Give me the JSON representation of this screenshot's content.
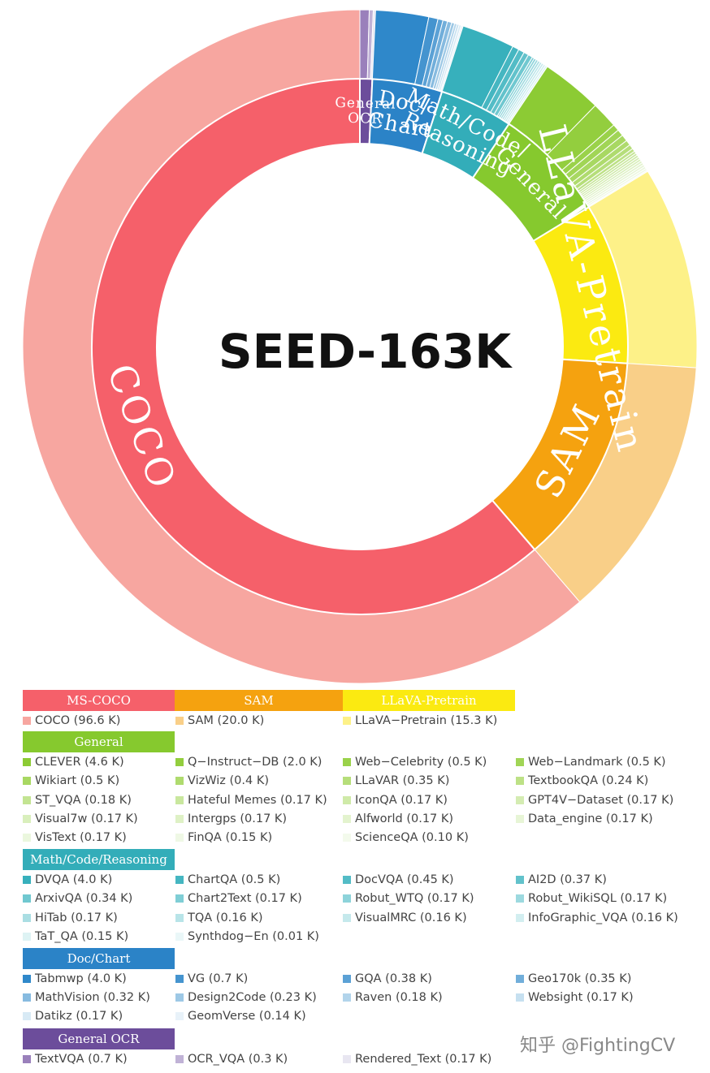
{
  "chart_data": {
    "type": "sunburst",
    "title": "SEED-163K",
    "unit": "K",
    "categories": [
      {
        "name": "MS-COCO",
        "ring_label": "COCO",
        "color": "#f5606a",
        "items": [
          {
            "name": "COCO",
            "value": 96.6,
            "label": "COCO (96.6 K)",
            "color": "#f7a6a0"
          }
        ]
      },
      {
        "name": "SAM",
        "ring_label": "SAM",
        "color": "#f5a20f",
        "items": [
          {
            "name": "SAM",
            "value": 20.0,
            "label": "SAM (20.0 K)",
            "color": "#f9cf88"
          }
        ]
      },
      {
        "name": "LLaVA-Pretrain",
        "ring_label": "LLaVA-Pretrain",
        "color": "#fbea11",
        "items": [
          {
            "name": "LLaVA-Pretrain",
            "value": 15.3,
            "label": "LLaVA−Pretrain (15.3 K)",
            "color": "#fdf188"
          }
        ]
      },
      {
        "name": "General",
        "ring_label": "General",
        "color": "#86c92e",
        "items": [
          {
            "name": "CLEVER",
            "value": 4.6,
            "label": "CLEVER (4.6 K)",
            "color": "#8ccb34"
          },
          {
            "name": "Q-Instruct-DB",
            "value": 2.0,
            "label": "Q−Instruct−DB (2.0 K)",
            "color": "#93ce3e"
          },
          {
            "name": "Web-Celebrity",
            "value": 0.5,
            "label": "Web−Celebrity (0.5 K)",
            "color": "#9ad24a"
          },
          {
            "name": "Web-Landmark",
            "value": 0.5,
            "label": "Web−Landmark (0.5 K)",
            "color": "#a1d556"
          },
          {
            "name": "Wikiart",
            "value": 0.5,
            "label": "Wikiart (0.5 K)",
            "color": "#a8d862"
          },
          {
            "name": "VizWiz",
            "value": 0.4,
            "label": "VizWiz (0.4 K)",
            "color": "#afdb6e"
          },
          {
            "name": "LLaVAR",
            "value": 0.35,
            "label": "LLaVAR (0.35 K)",
            "color": "#b6de7a"
          },
          {
            "name": "TextbookQA",
            "value": 0.24,
            "label": "TextbookQA (0.24 K)",
            "color": "#bde186"
          },
          {
            "name": "ST_VQA",
            "value": 0.18,
            "label": "ST_VQA (0.18 K)",
            "color": "#c3e492"
          },
          {
            "name": "Hateful Memes",
            "value": 0.17,
            "label": "Hateful Memes (0.17 K)",
            "color": "#c9e79e"
          },
          {
            "name": "IconQA",
            "value": 0.17,
            "label": "IconQA (0.17 K)",
            "color": "#cfeaa8"
          },
          {
            "name": "GPT4V-Dataset",
            "value": 0.17,
            "label": "GPT4V−Dataset (0.17 K)",
            "color": "#d4ecb2"
          },
          {
            "name": "Visual7w",
            "value": 0.17,
            "label": "Visual7w (0.17 K)",
            "color": "#d9efbc"
          },
          {
            "name": "Intergps",
            "value": 0.17,
            "label": "Intergps (0.17 K)",
            "color": "#def1c5"
          },
          {
            "name": "Alfworld",
            "value": 0.17,
            "label": "Alfworld (0.17 K)",
            "color": "#e3f3ce"
          },
          {
            "name": "Data_engine",
            "value": 0.17,
            "label": "Data_engine (0.17 K)",
            "color": "#e7f5d6"
          },
          {
            "name": "VisText",
            "value": 0.17,
            "label": "VisText (0.17 K)",
            "color": "#ebf7de"
          },
          {
            "name": "FinQA",
            "value": 0.15,
            "label": "FinQA (0.15 K)",
            "color": "#eff8e5"
          },
          {
            "name": "ScienceQA",
            "value": 0.1,
            "label": "ScienceQA (0.10 K)",
            "color": "#f3faec"
          }
        ]
      },
      {
        "name": "Math/Code/Reasoning",
        "ring_label": "Math/Code/ Reasoning",
        "color": "#33adb9",
        "items": [
          {
            "name": "DVQA",
            "value": 4.0,
            "label": "DVQA (4.0 K)",
            "color": "#37b0bc"
          },
          {
            "name": "ChartQA",
            "value": 0.5,
            "label": "ChartQA (0.5 K)",
            "color": "#45b6c1"
          },
          {
            "name": "DocVQA",
            "value": 0.45,
            "label": "DocVQA (0.45 K)",
            "color": "#53bcc6"
          },
          {
            "name": "AI2D",
            "value": 0.37,
            "label": "AI2D (0.37 K)",
            "color": "#62c2cb"
          },
          {
            "name": "ArxivQA",
            "value": 0.34,
            "label": "ArxivQA (0.34 K)",
            "color": "#70c8d0"
          },
          {
            "name": "Chart2Text",
            "value": 0.17,
            "label": "Chart2Text (0.17 K)",
            "color": "#7fced5"
          },
          {
            "name": "Robut_WTQ",
            "value": 0.17,
            "label": "Robut_WTQ (0.17 K)",
            "color": "#8dd3da"
          },
          {
            "name": "Robut_WikiSQL",
            "value": 0.17,
            "label": "Robut_WikiSQL (0.17 K)",
            "color": "#9cd9df"
          },
          {
            "name": "HiTab",
            "value": 0.17,
            "label": "HiTab (0.17 K)",
            "color": "#aadee3"
          },
          {
            "name": "TQA",
            "value": 0.16,
            "label": "TQA (0.16 K)",
            "color": "#b8e4e8"
          },
          {
            "name": "VisualMRC",
            "value": 0.16,
            "label": "VisualMRC (0.16 K)",
            "color": "#c5e9ec"
          },
          {
            "name": "InfoGraphic_VQA",
            "value": 0.16,
            "label": "InfoGraphic_VQA (0.16 K)",
            "color": "#d2eef0"
          },
          {
            "name": "TaT_QA",
            "value": 0.15,
            "label": "TaT_QA (0.15 K)",
            "color": "#def3f4"
          },
          {
            "name": "Synthdog-En",
            "value": 0.01,
            "label": "Synthdog−En (0.01 K)",
            "color": "#eaf7f8"
          }
        ]
      },
      {
        "name": "Doc/Chart",
        "ring_label": "Doc/ Chart",
        "color": "#2b83c7",
        "items": [
          {
            "name": "Tabmwp",
            "value": 4.0,
            "label": "Tabmwp (4.0 K)",
            "color": "#2f88ca"
          },
          {
            "name": "VG",
            "value": 0.7,
            "label": "VG (0.7 K)",
            "color": "#4594cf"
          },
          {
            "name": "GQA",
            "value": 0.38,
            "label": "GQA (0.38 K)",
            "color": "#5ba1d5"
          },
          {
            "name": "Geo170k",
            "value": 0.35,
            "label": "Geo170k (0.35 K)",
            "color": "#71aeda"
          },
          {
            "name": "MathVision",
            "value": 0.32,
            "label": "MathVision (0.32 K)",
            "color": "#87bbe0"
          },
          {
            "name": "Design2Code",
            "value": 0.23,
            "label": "Design2Code (0.23 K)",
            "color": "#9dc8e5"
          },
          {
            "name": "Raven",
            "value": 0.18,
            "label": "Raven (0.18 K)",
            "color": "#b2d4eb"
          },
          {
            "name": "Websight",
            "value": 0.17,
            "label": "Websight (0.17 K)",
            "color": "#c6e0f0"
          },
          {
            "name": "Datikz",
            "value": 0.17,
            "label": "Datikz (0.17 K)",
            "color": "#d8eaf5"
          },
          {
            "name": "GeomVerse",
            "value": 0.14,
            "label": "GeomVerse (0.14 K)",
            "color": "#e8f2f9"
          }
        ]
      },
      {
        "name": "General OCR",
        "ring_label": "General OCR",
        "color": "#6c4d9b",
        "items": [
          {
            "name": "TextVQA",
            "value": 0.7,
            "label": "TextVQA (0.7 K)",
            "color": "#9a80bb"
          },
          {
            "name": "OCR_VQA",
            "value": 0.3,
            "label": "OCR_VQA (0.3 K)",
            "color": "#c0b2d6"
          },
          {
            "name": "Rendered_Text",
            "value": 0.17,
            "label": "Rendered_Text (0.17 K)",
            "color": "#e8e6f1"
          }
        ]
      }
    ]
  },
  "watermark": "知乎 @FightingCV"
}
